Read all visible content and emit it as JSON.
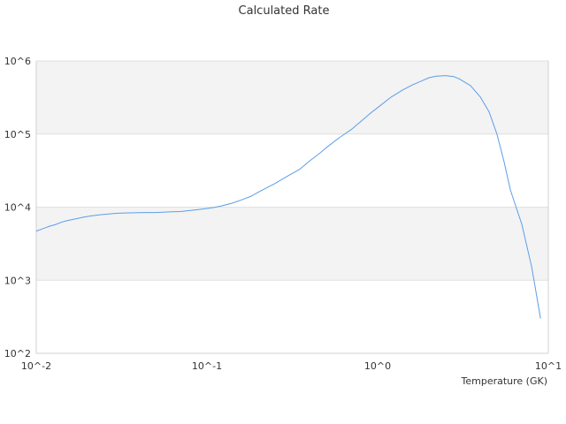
{
  "chart_data": {
    "type": "line",
    "title": "Calculated Rate",
    "xlabel": "Temperature (GK)",
    "ylabel": "",
    "x_scale": "log",
    "y_scale": "log",
    "xlim": [
      0.01,
      10
    ],
    "ylim": [
      100,
      1000000
    ],
    "x_ticks": [
      {
        "value": 0.01,
        "label": "10^-2"
      },
      {
        "value": 0.1,
        "label": "10^-1"
      },
      {
        "value": 1,
        "label": "10^0"
      },
      {
        "value": 10,
        "label": "10^1"
      }
    ],
    "y_ticks": [
      {
        "value": 100,
        "label": "10^2"
      },
      {
        "value": 1000,
        "label": "10^3"
      },
      {
        "value": 10000,
        "label": "10^4"
      },
      {
        "value": 100000,
        "label": "10^5"
      },
      {
        "value": 1000000,
        "label": "10^6"
      }
    ],
    "grid": true,
    "alternating_bands": true,
    "colors": {
      "line": "#5b9ee6",
      "band": "#f3f3f3",
      "grid": "#e0e0e0",
      "axis": "#d0d0d0"
    },
    "series": [
      {
        "x": [
          0.01,
          0.011,
          0.012,
          0.013,
          0.014,
          0.015,
          0.017,
          0.019,
          0.021,
          0.024,
          0.027,
          0.03,
          0.035,
          0.04,
          0.045,
          0.05,
          0.055,
          0.06,
          0.07,
          0.08,
          0.09,
          0.1,
          0.11,
          0.12,
          0.14,
          0.16,
          0.18,
          0.2,
          0.25,
          0.3,
          0.35,
          0.4,
          0.45,
          0.5,
          0.6,
          0.7,
          0.8,
          0.9,
          1.0,
          1.2,
          1.4,
          1.6,
          1.8,
          2.0,
          2.2,
          2.5,
          2.8,
          3.0,
          3.5,
          4.0,
          4.5,
          5.0,
          5.5,
          6.0,
          7.0,
          8.0,
          9.0
        ],
        "y": [
          4700,
          5100,
          5500,
          5800,
          6200,
          6500,
          6900,
          7300,
          7600,
          7900,
          8100,
          8250,
          8350,
          8400,
          8450,
          8450,
          8500,
          8600,
          8700,
          9000,
          9300,
          9600,
          9900,
          10300,
          11300,
          12600,
          14000,
          16000,
          21000,
          27000,
          33000,
          43000,
          53000,
          65000,
          90000,
          115000,
          150000,
          190000,
          230000,
          320000,
          400000,
          470000,
          530000,
          590000,
          620000,
          630000,
          610000,
          570000,
          460000,
          320000,
          200000,
          100000,
          42000,
          17000,
          5800,
          1500,
          300
        ]
      }
    ]
  }
}
